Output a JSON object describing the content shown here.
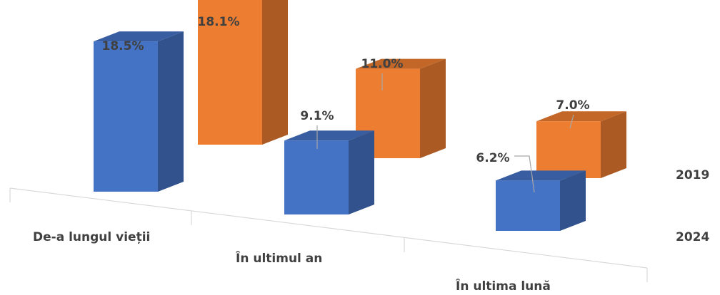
{
  "chart_data": {
    "type": "bar",
    "style": "3d-clustered-depth",
    "categories": [
      "De-a lungul vieții",
      "În ultimul an",
      "În ultima lună"
    ],
    "series": [
      {
        "name": "2019",
        "values": [
          18.1,
          11.0,
          7.0
        ],
        "labels": [
          "18.1%",
          "11.0%",
          "7.0%"
        ],
        "color": "#ED7D31"
      },
      {
        "name": "2024",
        "values": [
          18.5,
          9.1,
          6.2
        ],
        "labels": [
          "18.5%",
          "9.1%",
          "6.2%"
        ],
        "color": "#4472C4"
      }
    ],
    "title": "",
    "xlabel": "",
    "ylabel": "",
    "grid": false,
    "legend": "none"
  }
}
